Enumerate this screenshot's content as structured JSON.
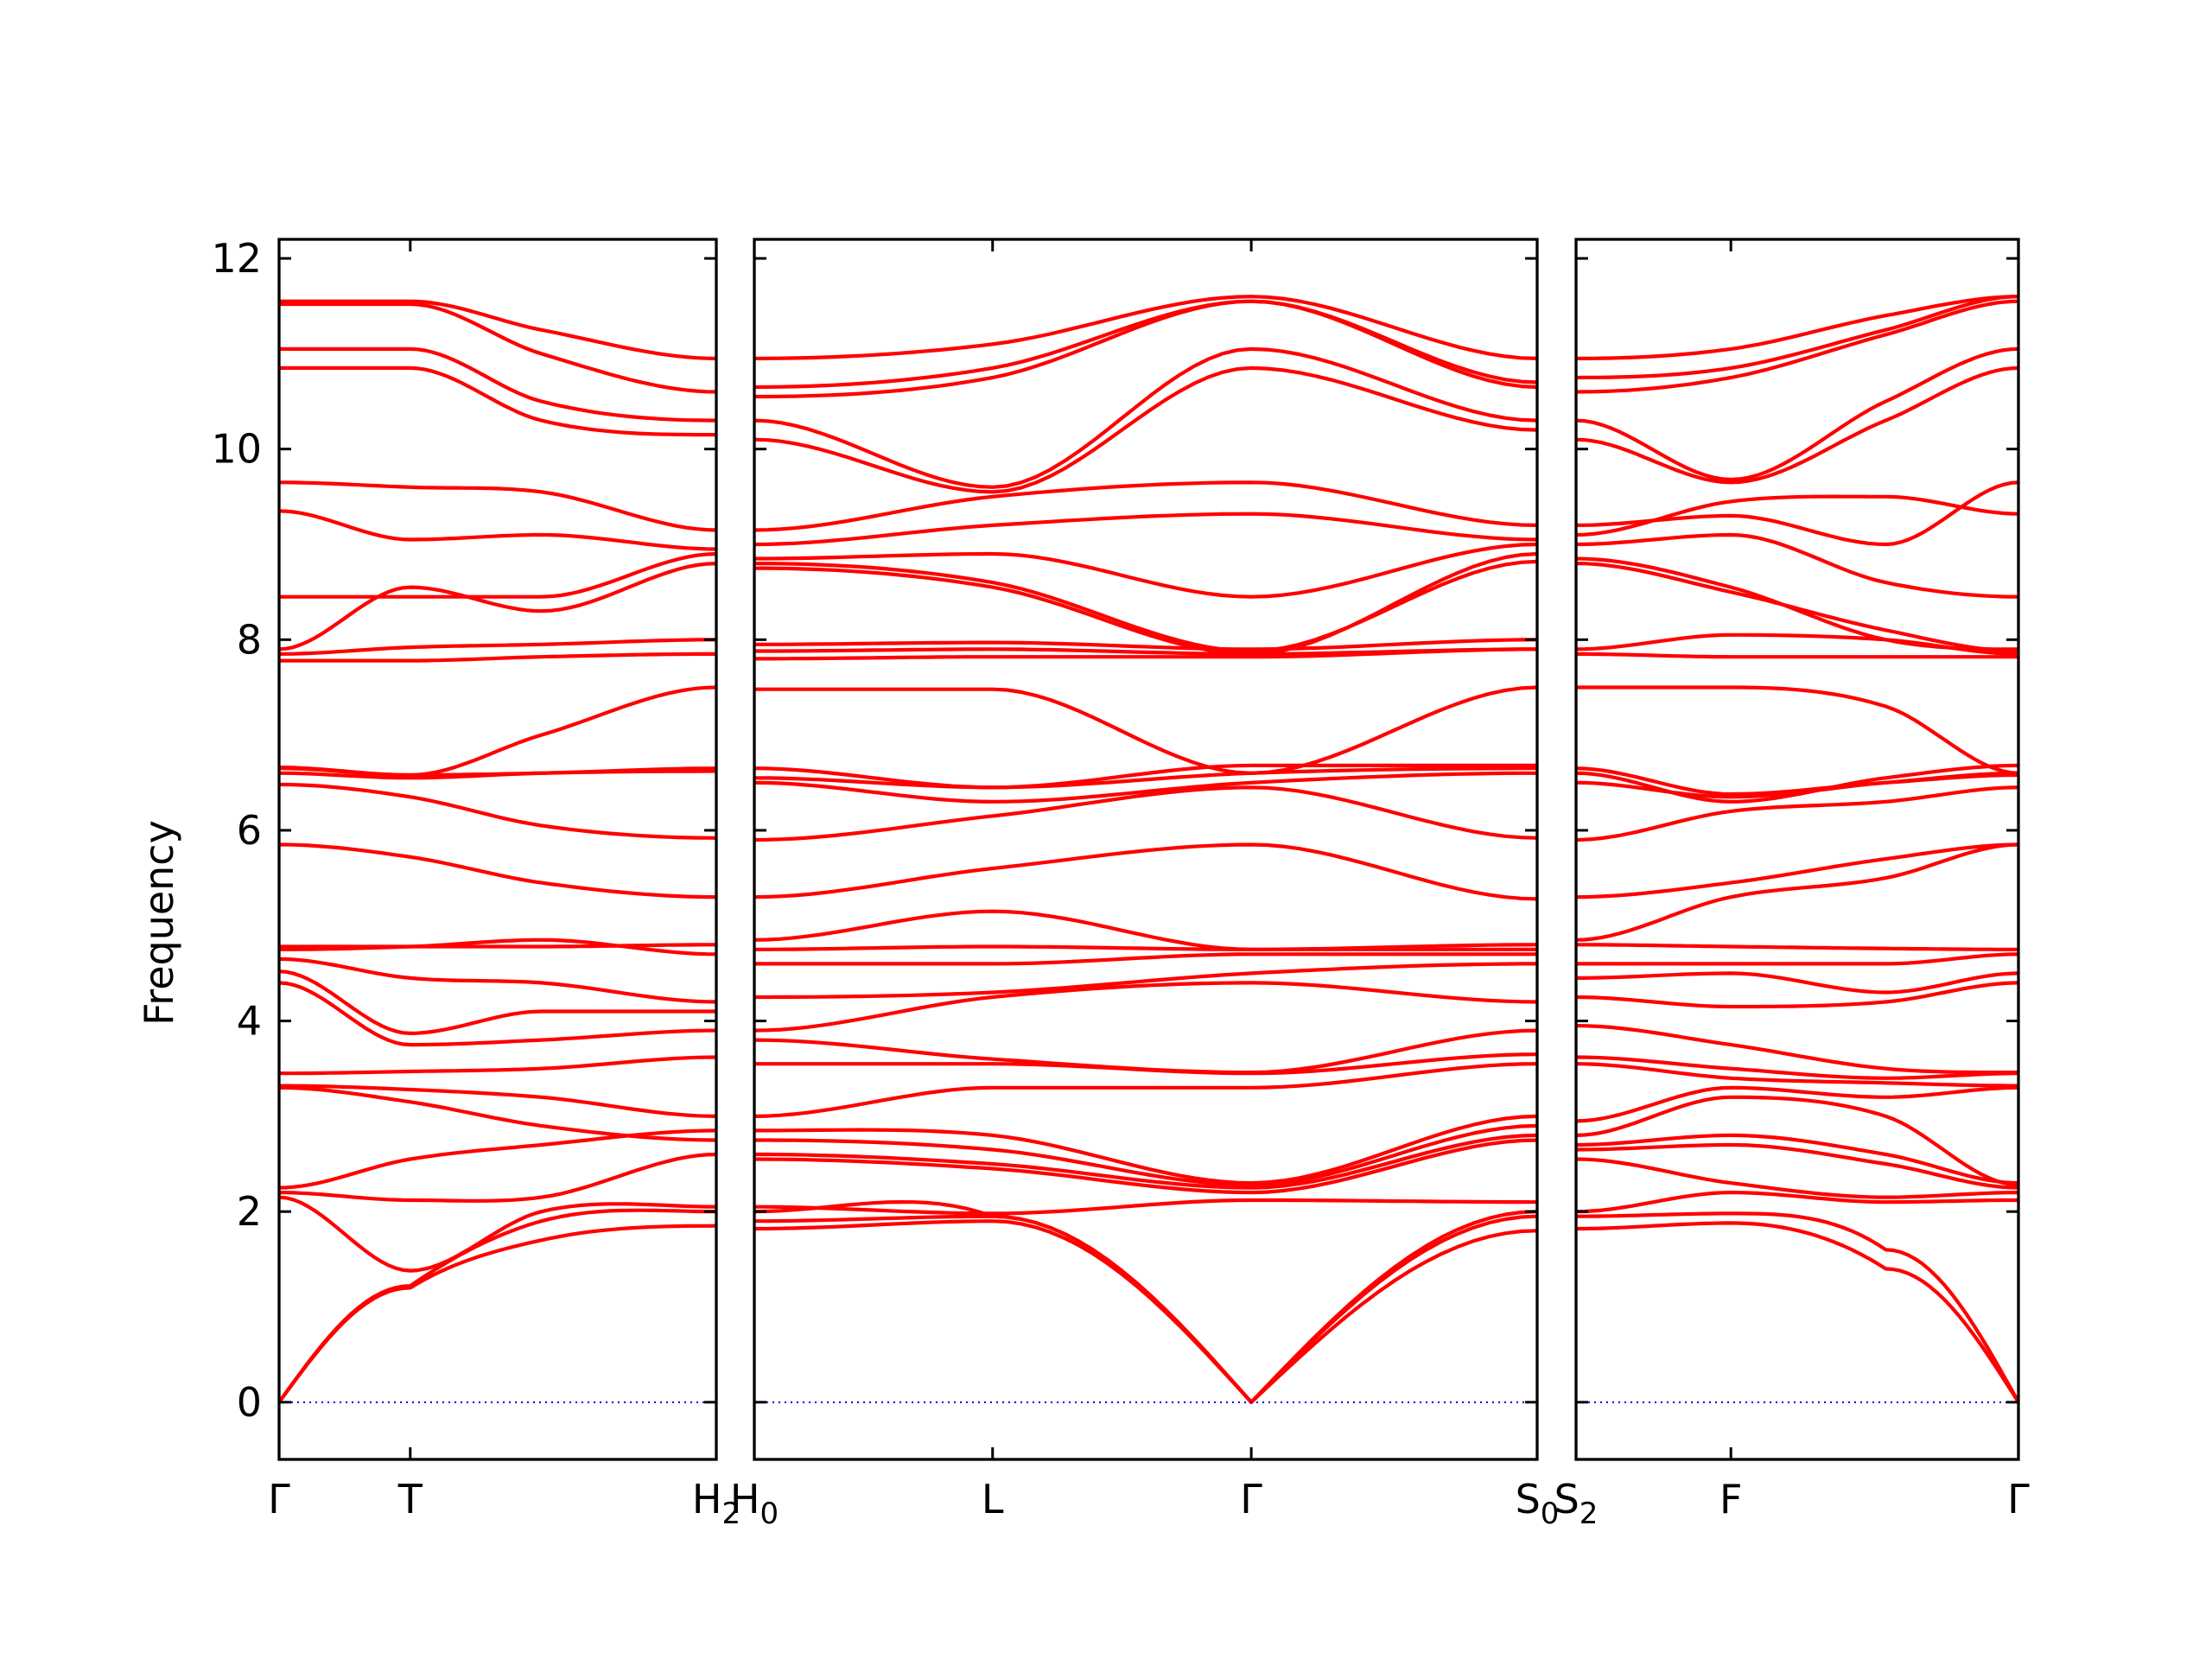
{
  "chart_data": {
    "type": "line",
    "ylabel": "Frequency",
    "ylim": [
      -0.6,
      12.2
    ],
    "yticks": [
      0,
      2,
      4,
      6,
      8,
      10,
      12
    ],
    "colors": {
      "bands": "#ff0000",
      "zero_line": "#0000cc"
    },
    "zero_line": 0,
    "panels": [
      {
        "labels": [
          {
            "x": 0,
            "text": "Γ",
            "sub": ""
          },
          {
            "x": 0.3,
            "text": "T",
            "sub": ""
          },
          {
            "x": 1.0,
            "text": "H",
            "sub": "2"
          }
        ],
        "x_knots": [
          0,
          0.3,
          0.6,
          1.0
        ],
        "bands": [
          [
            0,
            1.2,
            1.7,
            1.85
          ],
          [
            0,
            1.22,
            1.9,
            2.0
          ],
          [
            2.15,
            1.38,
            2.0,
            2.05
          ],
          [
            2.2,
            2.12,
            2.15,
            2.6
          ],
          [
            2.25,
            2.55,
            2.7,
            2.85
          ],
          [
            3.3,
            3.15,
            2.9,
            2.75
          ],
          [
            3.32,
            3.28,
            3.2,
            3.0
          ],
          [
            3.45,
            3.47,
            3.5,
            3.62
          ],
          [
            4.4,
            3.75,
            3.8,
            3.9
          ],
          [
            4.52,
            3.87,
            4.1,
            4.1
          ],
          [
            4.65,
            4.45,
            4.4,
            4.2
          ],
          [
            4.75,
            4.78,
            4.85,
            4.7
          ],
          [
            4.78,
            4.78,
            4.78,
            4.8
          ],
          [
            5.85,
            5.72,
            5.45,
            5.3
          ],
          [
            6.48,
            6.35,
            6.05,
            5.92
          ],
          [
            6.6,
            6.55,
            6.6,
            6.62
          ],
          [
            6.65,
            6.58,
            6.6,
            6.65
          ],
          [
            6.66,
            6.58,
            7.0,
            7.5
          ],
          [
            7.78,
            7.78,
            7.82,
            7.85
          ],
          [
            7.85,
            7.92,
            7.95,
            8.0
          ],
          [
            7.9,
            8.55,
            8.3,
            8.8
          ],
          [
            8.45,
            8.45,
            8.45,
            8.9
          ],
          [
            9.35,
            9.05,
            9.1,
            8.95
          ],
          [
            9.65,
            9.6,
            9.55,
            9.15
          ],
          [
            10.85,
            10.85,
            10.3,
            10.15
          ],
          [
            11.05,
            11.05,
            10.5,
            10.3
          ],
          [
            11.52,
            11.52,
            11.0,
            10.6
          ],
          [
            11.55,
            11.55,
            11.25,
            10.95
          ]
        ]
      },
      {
        "labels": [
          {
            "x": 0,
            "text": "H",
            "sub": "0"
          },
          {
            "x": 0.35,
            "text": "L",
            "sub": ""
          },
          {
            "x": 0.73,
            "text": "Γ",
            "sub": ""
          },
          {
            "x": 1.15,
            "text": "S",
            "sub": "0"
          }
        ],
        "x_knots": [
          0,
          0.35,
          0.73,
          1.15
        ],
        "bands": [
          [
            1.82,
            1.9,
            0,
            1.8
          ],
          [
            1.9,
            1.95,
            0,
            1.95
          ],
          [
            2.0,
            1.95,
            0,
            2.0
          ],
          [
            2.05,
            1.98,
            2.12,
            2.1
          ],
          [
            2.55,
            2.45,
            2.2,
            2.75
          ],
          [
            2.6,
            2.5,
            2.25,
            2.8
          ],
          [
            2.75,
            2.65,
            2.28,
            2.9
          ],
          [
            2.85,
            2.8,
            2.3,
            3.0
          ],
          [
            3.0,
            3.3,
            3.3,
            3.55
          ],
          [
            3.55,
            3.55,
            3.45,
            3.65
          ],
          [
            3.8,
            3.6,
            3.46,
            3.9
          ],
          [
            3.9,
            4.25,
            4.4,
            4.2
          ],
          [
            4.25,
            4.3,
            4.5,
            4.6
          ],
          [
            4.6,
            4.6,
            4.7,
            4.7
          ],
          [
            4.75,
            4.78,
            4.75,
            4.8
          ],
          [
            4.85,
            5.15,
            4.75,
            4.75
          ],
          [
            5.3,
            5.6,
            5.85,
            5.28
          ],
          [
            5.9,
            6.15,
            6.45,
            5.92
          ],
          [
            6.5,
            6.3,
            6.5,
            6.6
          ],
          [
            6.55,
            6.45,
            6.6,
            6.65
          ],
          [
            6.65,
            6.45,
            6.68,
            6.68
          ],
          [
            7.48,
            7.48,
            6.6,
            7.5
          ],
          [
            7.8,
            7.82,
            7.82,
            7.9
          ],
          [
            7.88,
            7.9,
            7.85,
            7.9
          ],
          [
            7.95,
            7.97,
            7.9,
            8.0
          ],
          [
            8.75,
            8.55,
            7.85,
            8.9
          ],
          [
            8.8,
            8.6,
            7.88,
            8.82
          ],
          [
            8.85,
            8.9,
            8.45,
            9.0
          ],
          [
            9.0,
            9.2,
            9.32,
            9.05
          ],
          [
            9.15,
            9.5,
            9.65,
            9.2
          ],
          [
            10.1,
            9.55,
            10.85,
            10.2
          ],
          [
            10.3,
            9.6,
            11.05,
            10.3
          ],
          [
            10.55,
            10.75,
            11.55,
            10.65
          ],
          [
            10.65,
            10.85,
            11.55,
            10.7
          ],
          [
            10.95,
            11.1,
            11.6,
            10.95
          ]
        ]
      },
      {
        "labels": [
          {
            "x": 0,
            "text": "S",
            "sub": "2"
          },
          {
            "x": 0.35,
            "text": "F",
            "sub": ""
          },
          {
            "x": 1.0,
            "text": "Γ",
            "sub": ""
          }
        ],
        "x_knots": [
          0,
          0.35,
          0.7,
          1.0
        ],
        "bands": [
          [
            1.82,
            1.88,
            1.4,
            0
          ],
          [
            1.95,
            1.98,
            1.6,
            0
          ],
          [
            2.0,
            2.2,
            2.1,
            2.12
          ],
          [
            2.55,
            2.3,
            2.15,
            2.2
          ],
          [
            2.65,
            2.7,
            2.5,
            2.25
          ],
          [
            2.7,
            2.8,
            2.6,
            2.3
          ],
          [
            2.8,
            3.2,
            3.0,
            2.28
          ],
          [
            2.95,
            3.3,
            3.2,
            3.3
          ],
          [
            3.55,
            3.4,
            3.35,
            3.32
          ],
          [
            3.62,
            3.5,
            3.4,
            3.45
          ],
          [
            3.95,
            3.75,
            3.5,
            3.46
          ],
          [
            4.25,
            4.15,
            4.2,
            4.4
          ],
          [
            4.45,
            4.5,
            4.3,
            4.5
          ],
          [
            4.6,
            4.6,
            4.6,
            4.7
          ],
          [
            4.8,
            4.78,
            4.76,
            4.75
          ],
          [
            4.85,
            5.3,
            5.5,
            5.85
          ],
          [
            5.3,
            5.45,
            5.7,
            5.85
          ],
          [
            5.9,
            6.2,
            6.3,
            6.45
          ],
          [
            6.5,
            6.35,
            6.5,
            6.6
          ],
          [
            6.6,
            6.3,
            6.55,
            6.68
          ],
          [
            6.65,
            6.38,
            6.5,
            6.58
          ],
          [
            7.5,
            7.5,
            7.3,
            6.6
          ],
          [
            7.85,
            7.82,
            7.82,
            7.82
          ],
          [
            7.9,
            8.05,
            8.0,
            7.85
          ],
          [
            8.8,
            8.5,
            8.1,
            7.88
          ],
          [
            8.85,
            8.55,
            8.0,
            7.9
          ],
          [
            9.0,
            9.1,
            8.6,
            8.45
          ],
          [
            9.1,
            9.45,
            9.5,
            9.32
          ],
          [
            9.2,
            9.3,
            9.0,
            9.65
          ],
          [
            10.1,
            9.65,
            10.3,
            10.85
          ],
          [
            10.3,
            9.68,
            10.5,
            11.05
          ],
          [
            10.6,
            10.75,
            11.2,
            11.55
          ],
          [
            10.75,
            10.85,
            11.25,
            11.6
          ],
          [
            10.95,
            11.05,
            11.4,
            11.6
          ]
        ]
      }
    ]
  }
}
